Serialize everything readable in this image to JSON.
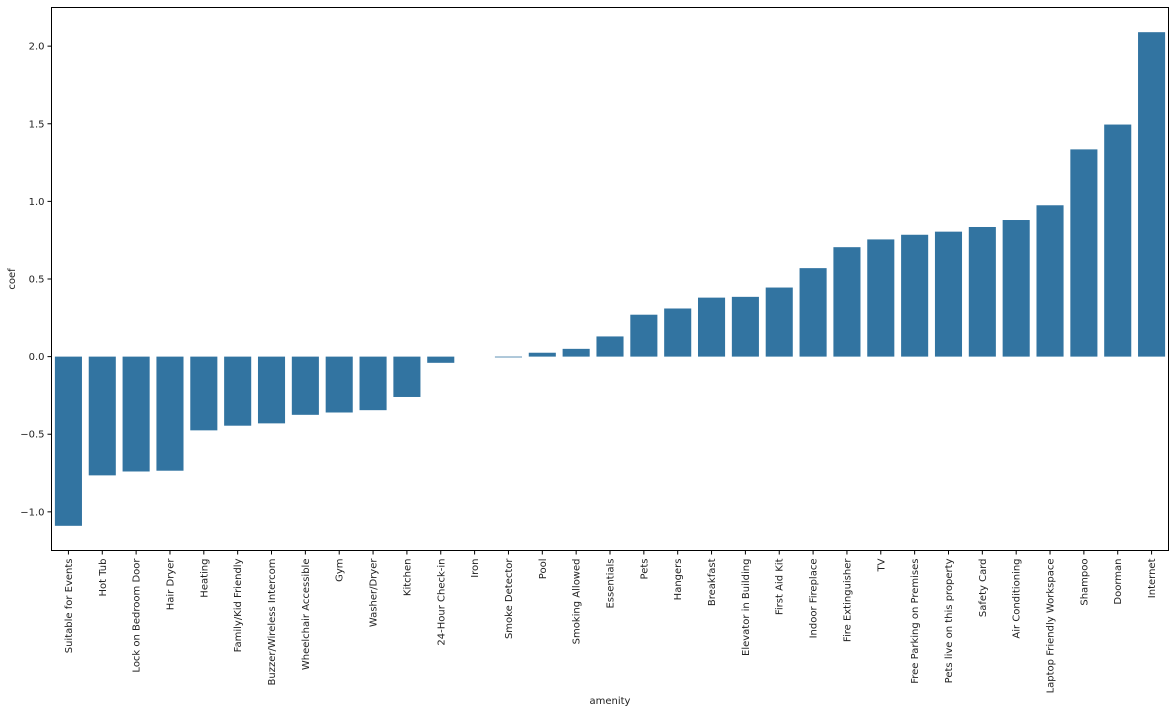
{
  "chart_data": {
    "type": "bar",
    "xlabel": "amenity",
    "ylabel": "coef",
    "ylim": [
      -1.09,
      2.09
    ],
    "yticks": [
      -1.0,
      -0.5,
      0.0,
      0.5,
      1.0,
      1.5,
      2.0
    ],
    "ytick_labels": [
      "−1.0",
      "−0.5",
      "0.0",
      "0.5",
      "1.0",
      "1.5",
      "2.0"
    ],
    "bar_color": "#3274a1",
    "grid": false,
    "categories": [
      "Suitable for Events",
      "Hot Tub",
      "Lock on Bedroom Door",
      "Hair Dryer",
      "Heating",
      "Family/Kid Friendly",
      "Buzzer/Wireless Intercom",
      "Wheelchair Accessible",
      "Gym",
      "Washer/Dryer",
      "Kitchen",
      "24-Hour Check-in",
      "Iron",
      "Smoke Detector",
      "Pool",
      "Smoking Allowed",
      "Essentials",
      "Pets",
      "Hangers",
      "Breakfast",
      "Elevator in Building",
      "First Aid Kit",
      "Indoor Fireplace",
      "Fire Extinguisher",
      "TV",
      "Free Parking on Premises",
      "Pets live on this property",
      "Safety Card",
      "Air Conditioning",
      "Laptop Friendly Workspace",
      "Shampoo",
      "Doorman",
      "Internet"
    ],
    "values": [
      -1.09,
      -0.765,
      -0.74,
      -0.735,
      -0.475,
      -0.445,
      -0.43,
      -0.375,
      -0.36,
      -0.345,
      -0.26,
      -0.04,
      0.0,
      -0.005,
      0.025,
      0.05,
      0.13,
      0.27,
      0.31,
      0.38,
      0.385,
      0.445,
      0.57,
      0.705,
      0.755,
      0.785,
      0.805,
      0.835,
      0.88,
      0.975,
      1.335,
      1.495,
      2.09
    ]
  }
}
